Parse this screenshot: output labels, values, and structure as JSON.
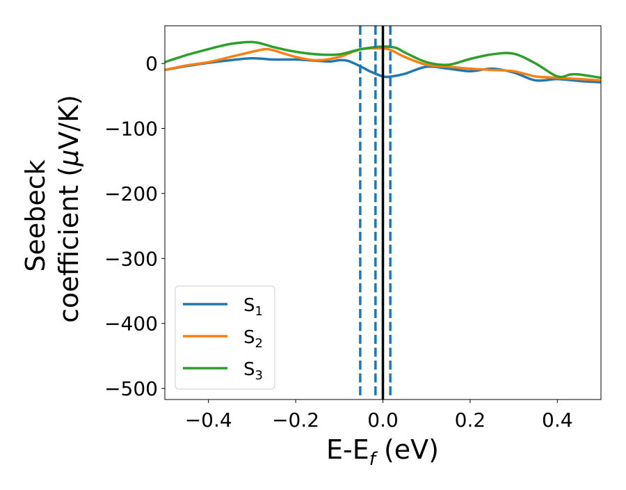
{
  "chart_data": {
    "type": "line",
    "title": "",
    "xlabel": {
      "main": "E-E",
      "sub": "f",
      "tail": " (eV)"
    },
    "ylabel": {
      "line1": "Seebeck",
      "line2_prefix": "coefficient  (",
      "line2_mu": "μ",
      "line2_suffix": "V/K)"
    },
    "xlim": [
      -0.5,
      0.5
    ],
    "ylim": [
      -517,
      58
    ],
    "x_ticks": [
      -0.4,
      -0.2,
      0.0,
      0.2,
      0.4
    ],
    "x_tick_labels": [
      "−0.4",
      "−0.2",
      "0.0",
      "0.2",
      "0.4"
    ],
    "y_ticks": [
      0,
      -100,
      -200,
      -300,
      -400,
      -500
    ],
    "y_tick_labels": [
      "0",
      "−100",
      "−200",
      "−300",
      "−400",
      "−500"
    ],
    "grid": false,
    "legend_position": "lower-left",
    "series": [
      {
        "name": "S",
        "subscript": "1",
        "color": "#1f77b4",
        "x": [
          -0.5,
          -0.45,
          -0.4,
          -0.35,
          -0.3,
          -0.25,
          -0.2,
          -0.15,
          -0.12,
          -0.1,
          -0.08,
          -0.05,
          -0.03,
          0.0,
          0.02,
          0.05,
          0.1,
          0.15,
          0.2,
          0.25,
          0.3,
          0.35,
          0.4,
          0.45,
          0.5
        ],
        "y": [
          -10,
          -4,
          1,
          5,
          8,
          6,
          6,
          4,
          3,
          5,
          4,
          -5,
          -12,
          -20,
          -20,
          -16,
          -5,
          -8,
          -12,
          -8,
          -14,
          -26,
          -24,
          -27,
          -29
        ]
      },
      {
        "name": "S",
        "subscript": "2",
        "color": "#ff7f0e",
        "x": [
          -0.5,
          -0.45,
          -0.4,
          -0.35,
          -0.3,
          -0.27,
          -0.25,
          -0.2,
          -0.15,
          -0.1,
          -0.05,
          0.0,
          0.02,
          0.05,
          0.1,
          0.15,
          0.2,
          0.25,
          0.3,
          0.35,
          0.4,
          0.45,
          0.5
        ],
        "y": [
          -10,
          -3,
          2,
          10,
          18,
          22,
          20,
          10,
          5,
          10,
          22,
          23,
          20,
          10,
          -2,
          -5,
          -8,
          -10,
          -12,
          -20,
          -22,
          -24,
          -26
        ]
      },
      {
        "name": "S",
        "subscript": "3",
        "color": "#2ca02c",
        "x": [
          -0.5,
          -0.45,
          -0.4,
          -0.35,
          -0.3,
          -0.27,
          -0.25,
          -0.2,
          -0.15,
          -0.1,
          -0.05,
          0.0,
          0.03,
          0.05,
          0.1,
          0.15,
          0.2,
          0.25,
          0.3,
          0.35,
          0.4,
          0.43,
          0.45,
          0.5
        ],
        "y": [
          2,
          13,
          22,
          30,
          33,
          29,
          25,
          18,
          14,
          14,
          22,
          26,
          24,
          17,
          2,
          -2,
          7,
          14,
          15,
          0,
          -20,
          -17,
          -17,
          -22
        ]
      }
    ],
    "vertical_lines": [
      {
        "x": -0.052,
        "style": "dashed",
        "color": "#1f77b4"
      },
      {
        "x": -0.017,
        "style": "dashed",
        "color": "#1f77b4"
      },
      {
        "x": 0.017,
        "style": "dashed",
        "color": "#1f77b4"
      },
      {
        "x": 0.0,
        "style": "solid",
        "color": "#000000"
      }
    ]
  }
}
